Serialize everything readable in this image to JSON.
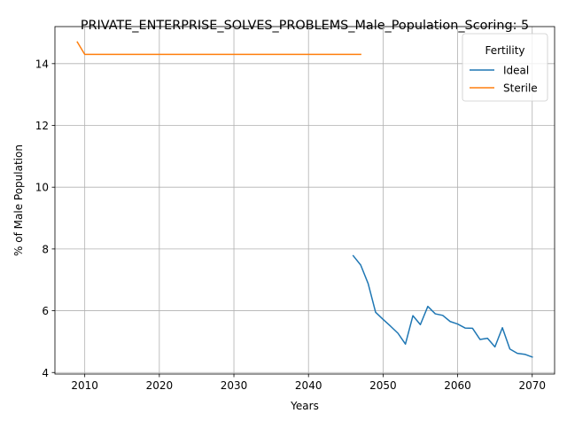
{
  "chart_data": {
    "type": "line",
    "title": "PRIVATE_ENTERPRISE_SOLVES_PROBLEMS_Male_Population_Scoring: 5",
    "xlabel": "Years",
    "ylabel": "% of Male Population",
    "xlim": [
      2006,
      2073
    ],
    "ylim": [
      3.95,
      15.2
    ],
    "x_ticks": [
      2010,
      2020,
      2030,
      2040,
      2050,
      2060,
      2070
    ],
    "y_ticks": [
      4,
      6,
      8,
      10,
      12,
      14
    ],
    "grid": true,
    "legend": {
      "title": "Fertility",
      "placement": "top-right"
    },
    "series": [
      {
        "name": "Ideal",
        "color": "#1f77b4",
        "points": [
          [
            2046,
            7.78
          ],
          [
            2047,
            7.48
          ],
          [
            2048,
            6.88
          ],
          [
            2049,
            5.95
          ],
          [
            2050,
            5.72
          ],
          [
            2051,
            5.5
          ],
          [
            2052,
            5.27
          ],
          [
            2053,
            4.92
          ],
          [
            2054,
            5.84
          ],
          [
            2055,
            5.55
          ],
          [
            2056,
            6.14
          ],
          [
            2057,
            5.9
          ],
          [
            2058,
            5.85
          ],
          [
            2059,
            5.65
          ],
          [
            2060,
            5.57
          ],
          [
            2061,
            5.44
          ],
          [
            2062,
            5.43
          ],
          [
            2063,
            5.07
          ],
          [
            2064,
            5.11
          ],
          [
            2065,
            4.83
          ],
          [
            2066,
            5.45
          ],
          [
            2067,
            4.76
          ],
          [
            2068,
            4.62
          ],
          [
            2069,
            4.59
          ],
          [
            2070,
            4.5
          ]
        ]
      },
      {
        "name": "Sterile",
        "color": "#ff7f0e",
        "points": [
          [
            2009,
            14.7
          ],
          [
            2010,
            14.3
          ],
          [
            2020,
            14.3
          ],
          [
            2030,
            14.3
          ],
          [
            2040,
            14.3
          ],
          [
            2047,
            14.3
          ]
        ]
      }
    ]
  }
}
